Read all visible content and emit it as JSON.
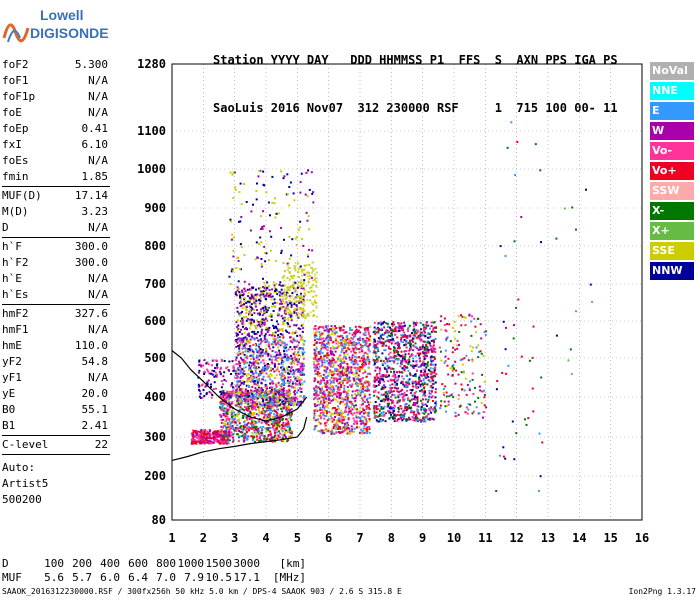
{
  "logo": {
    "line1": "Lowell",
    "line2": "DIGISONDE"
  },
  "header": {
    "labels": "Station YYYY DAY   DDD HHMMSS P1  FFS  S  AXN PPS IGA PS",
    "values": "SaoLuis 2016 Nov07  312 230000 RSF     1  715 100 00- 11"
  },
  "params": {
    "groups": [
      [
        [
          "foF2",
          "5.300"
        ],
        [
          "foF1",
          "N/A"
        ],
        [
          "foF1p",
          "N/A"
        ],
        [
          "foE",
          "N/A"
        ],
        [
          "foEp",
          "0.41"
        ],
        [
          "fxI",
          "6.10"
        ],
        [
          "foEs",
          "N/A"
        ],
        [
          "fmin",
          "1.85"
        ]
      ],
      [
        [
          "MUF(D)",
          "17.14"
        ],
        [
          "M(D)",
          "3.23"
        ],
        [
          "D",
          "N/A"
        ]
      ],
      [
        [
          "h`F",
          "300.0"
        ],
        [
          "h`F2",
          "300.0"
        ],
        [
          "h`E",
          "N/A"
        ],
        [
          "h`Es",
          "N/A"
        ]
      ],
      [
        [
          "hmF2",
          "327.6"
        ],
        [
          "hmF1",
          "N/A"
        ],
        [
          "hmE",
          "110.0"
        ],
        [
          "yF2",
          "54.8"
        ],
        [
          "yF1",
          "N/A"
        ],
        [
          "yE",
          "20.0"
        ],
        [
          "B0",
          "55.1"
        ],
        [
          "B1",
          "2.41"
        ]
      ],
      [
        [
          "C-level",
          "22"
        ]
      ]
    ],
    "auto": [
      "Auto:",
      "Artist5",
      "500200"
    ]
  },
  "legend": [
    {
      "label": "NoVal",
      "color": "#b0b0b0"
    },
    {
      "label": "NNE",
      "color": "#00ffff"
    },
    {
      "label": "E",
      "color": "#3399ff"
    },
    {
      "label": "W",
      "color": "#aa00aa"
    },
    {
      "label": "Vo-",
      "color": "#ff3399"
    },
    {
      "label": "Vo+",
      "color": "#ee0022"
    },
    {
      "label": "SSW",
      "color": "#ffaaaa"
    },
    {
      "label": "X-",
      "color": "#007700"
    },
    {
      "label": "X+",
      "color": "#66bb44"
    },
    {
      "label": "SSE",
      "color": "#cccc00"
    },
    {
      "label": "NNW",
      "color": "#000099"
    }
  ],
  "chart_data": {
    "type": "scatter",
    "x_ticks": [
      1,
      2,
      3,
      4,
      5,
      6,
      7,
      8,
      9,
      10,
      11,
      12,
      13,
      14,
      15,
      16
    ],
    "y_ticks": [
      80,
      200,
      300,
      400,
      500,
      600,
      700,
      800,
      900,
      1000,
      1100,
      1280
    ],
    "xlim": [
      1,
      16
    ],
    "ylim": [
      80,
      1280
    ],
    "grid": true,
    "legend_position": "right",
    "trace_main": {
      "color": "#000000",
      "x": [
        1.0,
        1.5,
        2.0,
        2.5,
        3.0,
        3.5,
        4.0,
        4.5,
        5.0,
        5.2,
        5.3
      ],
      "y": [
        240,
        250,
        262,
        270,
        276,
        283,
        288,
        293,
        300,
        320,
        350
      ]
    },
    "trace_upper": {
      "color": "#000000",
      "x": [
        1.0,
        1.3,
        1.6,
        2.0,
        2.5,
        3.0,
        3.5,
        4.0,
        4.5,
        5.0,
        5.3
      ],
      "y": [
        520,
        500,
        470,
        440,
        400,
        370,
        350,
        340,
        350,
        370,
        400
      ]
    },
    "clusters": [
      {
        "x": [
          1.6,
          2.8
        ],
        "y": [
          285,
          320
        ],
        "colors": [
          "#ee0022",
          "#ff3399",
          "#aa00aa"
        ],
        "n": 300
      },
      {
        "x": [
          2.5,
          4.8
        ],
        "y": [
          290,
          420
        ],
        "colors": [
          "#ee0022",
          "#ff3399",
          "#aa00aa",
          "#cccc00",
          "#007700",
          "#3399ff"
        ],
        "n": 900
      },
      {
        "x": [
          3.0,
          5.2
        ],
        "y": [
          380,
          560
        ],
        "colors": [
          "#aa00aa",
          "#ff3399",
          "#000099",
          "#cccc00",
          "#3399ff"
        ],
        "n": 900
      },
      {
        "x": [
          3.0,
          5.2
        ],
        "y": [
          560,
          700
        ],
        "colors": [
          "#cccc00",
          "#aa00aa",
          "#000099"
        ],
        "n": 450
      },
      {
        "x": [
          4.5,
          5.6
        ],
        "y": [
          610,
          760
        ],
        "colors": [
          "#cccc00",
          "#ccdd66"
        ],
        "n": 180
      },
      {
        "x": [
          2.8,
          5.5
        ],
        "y": [
          700,
          1000
        ],
        "colors": [
          "#cccc00",
          "#aa00aa",
          "#000099"
        ],
        "n": 150
      },
      {
        "x": [
          5.5,
          7.3
        ],
        "y": [
          310,
          590
        ],
        "colors": [
          "#ee0022",
          "#ff3399",
          "#aa00aa",
          "#3399ff",
          "#cccc00"
        ],
        "n": 1200
      },
      {
        "x": [
          7.4,
          9.4
        ],
        "y": [
          340,
          600
        ],
        "colors": [
          "#ee0022",
          "#ff3399",
          "#aa00aa",
          "#000099",
          "#3399ff",
          "#007700"
        ],
        "n": 1100
      },
      {
        "x": [
          9.5,
          11.0
        ],
        "y": [
          350,
          620
        ],
        "colors": [
          "#ee0022",
          "#ff3399",
          "#aa00aa",
          "#3399ff",
          "#cccc00",
          "#007700"
        ],
        "n": 160
      },
      {
        "x": [
          11.3,
          12.8
        ],
        "y": [
          150,
          1150
        ],
        "colors": [
          "#007700",
          "#aa00aa",
          "#ee0022",
          "#3399ff",
          "#000099"
        ],
        "n": 45
      },
      {
        "x": [
          13.0,
          14.5
        ],
        "y": [
          350,
          1000
        ],
        "colors": [
          "#000099",
          "#007700",
          "#66bb44"
        ],
        "n": 12
      },
      {
        "x": [
          1.8,
          3.0
        ],
        "y": [
          400,
          500
        ],
        "colors": [
          "#000099",
          "#aa00aa",
          "#ff3399"
        ],
        "n": 120
      }
    ]
  },
  "footer": {
    "d_label": "D",
    "muf_label": "MUF",
    "d_values": [
      "100",
      "200",
      "400",
      "600",
      "800",
      "1000",
      "1500",
      "3000",
      "[km]"
    ],
    "muf_values": [
      "5.6",
      "5.7",
      "6.0",
      "6.4",
      "7.0",
      "7.9",
      "10.5",
      "17.1",
      "[MHz]"
    ],
    "file_line": "SAAOK_2016312230000.RSF / 300fx256h 50 kHz 5.0 km / DPS-4 SAAOK 903 / 2.6 S 315.8 E",
    "version": "Ion2Png 1.3.17"
  }
}
